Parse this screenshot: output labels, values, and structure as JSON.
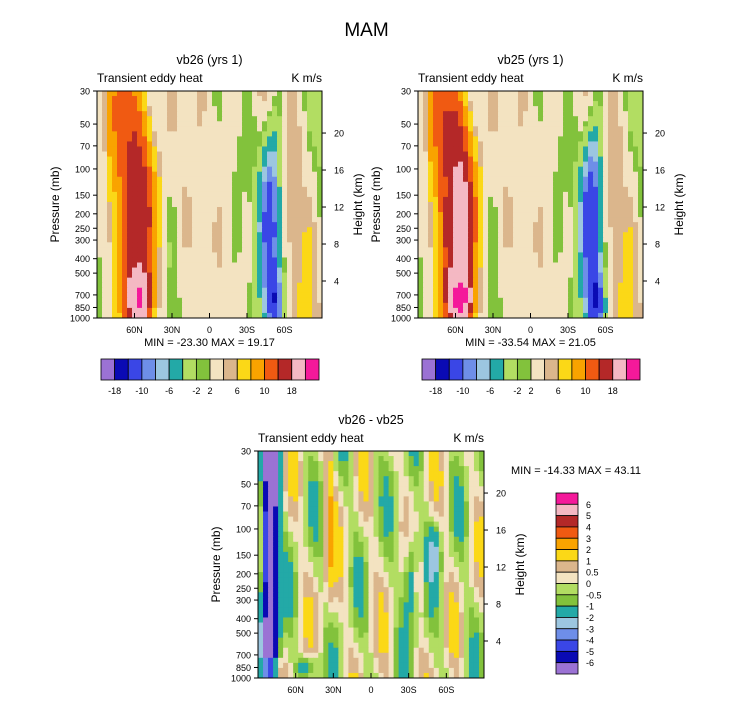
{
  "title": "MAM",
  "colors": {
    "panel_palette": [
      "#9b72d4",
      "#0a0ab4",
      "#3a46e6",
      "#6e8ee8",
      "#9cc6e0",
      "#23a9a7",
      "#b2dd62",
      "#82c23c",
      "#f3e3c1",
      "#dbb68c",
      "#fbd817",
      "#f9a300",
      "#f05a12",
      "#b42828",
      "#f4b8c3",
      "#f4199a"
    ],
    "diff_palette": [
      "#9b72d4",
      "#0a0ab4",
      "#3a46e6",
      "#6e8ee8",
      "#9cc6e0",
      "#23a9a7",
      "#82c23c",
      "#b2dd62",
      "#f3e3c1",
      "#dbb68c",
      "#fbd817",
      "#f9a300",
      "#f05a12",
      "#b42828",
      "#f4b8c3",
      "#f4199a"
    ]
  },
  "chart_data": [
    {
      "type": "heatmap",
      "title": "vb26 (yrs 1)",
      "left_label": "Transient eddy heat",
      "right_label": "K m/s",
      "ylabel": "Pressure (mb)",
      "ylabel_right": "Height (km)",
      "stats": "MIN = -23.30  MAX =  19.17",
      "pressure_ticks": [
        "30",
        "50",
        "70",
        "100",
        "150",
        "200",
        "250",
        "300",
        "400",
        "500",
        "700",
        "850",
        "1000"
      ],
      "pressure_values": [
        30,
        50,
        70,
        100,
        150,
        200,
        250,
        300,
        400,
        500,
        700,
        850,
        1000
      ],
      "height_ticks": [
        "20",
        "16",
        "12",
        "8",
        "4"
      ],
      "height_values": [
        20,
        16,
        12,
        8,
        4
      ],
      "x_ticks": [
        "60N",
        "30N",
        "0",
        "30S",
        "60S"
      ],
      "x_values": [
        60,
        30,
        0,
        -30,
        -60
      ],
      "xlim": [
        90,
        -90
      ],
      "colorbar_labels": [
        "-18",
        "-10",
        "-6",
        "-2",
        "2",
        "6",
        "10",
        "18"
      ]
    },
    {
      "type": "heatmap",
      "title": "vb25 (yrs 1)",
      "left_label": "Transient eddy heat",
      "right_label": "K m/s",
      "ylabel": "Pressure (mb)",
      "ylabel_right": "Height (km)",
      "stats": "MIN = -33.54  MAX =  21.05",
      "pressure_ticks": [
        "30",
        "50",
        "70",
        "100",
        "150",
        "200",
        "250",
        "300",
        "400",
        "500",
        "700",
        "850",
        "1000"
      ],
      "pressure_values": [
        30,
        50,
        70,
        100,
        150,
        200,
        250,
        300,
        400,
        500,
        700,
        850,
        1000
      ],
      "height_ticks": [
        "20",
        "16",
        "12",
        "8",
        "4"
      ],
      "height_values": [
        20,
        16,
        12,
        8,
        4
      ],
      "x_ticks": [
        "60N",
        "30N",
        "0",
        "30S",
        "60S"
      ],
      "x_values": [
        60,
        30,
        0,
        -30,
        -60
      ],
      "xlim": [
        90,
        -90
      ],
      "colorbar_labels": [
        "-18",
        "-10",
        "-6",
        "-2",
        "2",
        "6",
        "10",
        "18"
      ]
    },
    {
      "type": "heatmap",
      "title": "vb26 - vb25",
      "left_label": "Transient eddy heat",
      "right_label": "K m/s",
      "ylabel": "Pressure (mb)",
      "ylabel_right": "Height (km)",
      "stats": "MIN = -14.33  MAX =  43.11",
      "pressure_ticks": [
        "30",
        "50",
        "70",
        "100",
        "150",
        "200",
        "250",
        "300",
        "400",
        "500",
        "700",
        "850",
        "1000"
      ],
      "pressure_values": [
        30,
        50,
        70,
        100,
        150,
        200,
        250,
        300,
        400,
        500,
        700,
        850,
        1000
      ],
      "height_ticks": [
        "20",
        "16",
        "12",
        "8",
        "4"
      ],
      "height_values": [
        20,
        16,
        12,
        8,
        4
      ],
      "x_ticks": [
        "60N",
        "30N",
        "0",
        "30S",
        "60S"
      ],
      "x_values": [
        60,
        30,
        0,
        -30,
        -60
      ],
      "xlim": [
        90,
        -90
      ],
      "colorbar_labels": [
        "6",
        "5",
        "4",
        "3",
        "2",
        "1",
        "0.5",
        "0",
        "-0.5",
        "-1",
        "-2",
        "-3",
        "-4",
        "-5",
        "-6"
      ]
    }
  ]
}
